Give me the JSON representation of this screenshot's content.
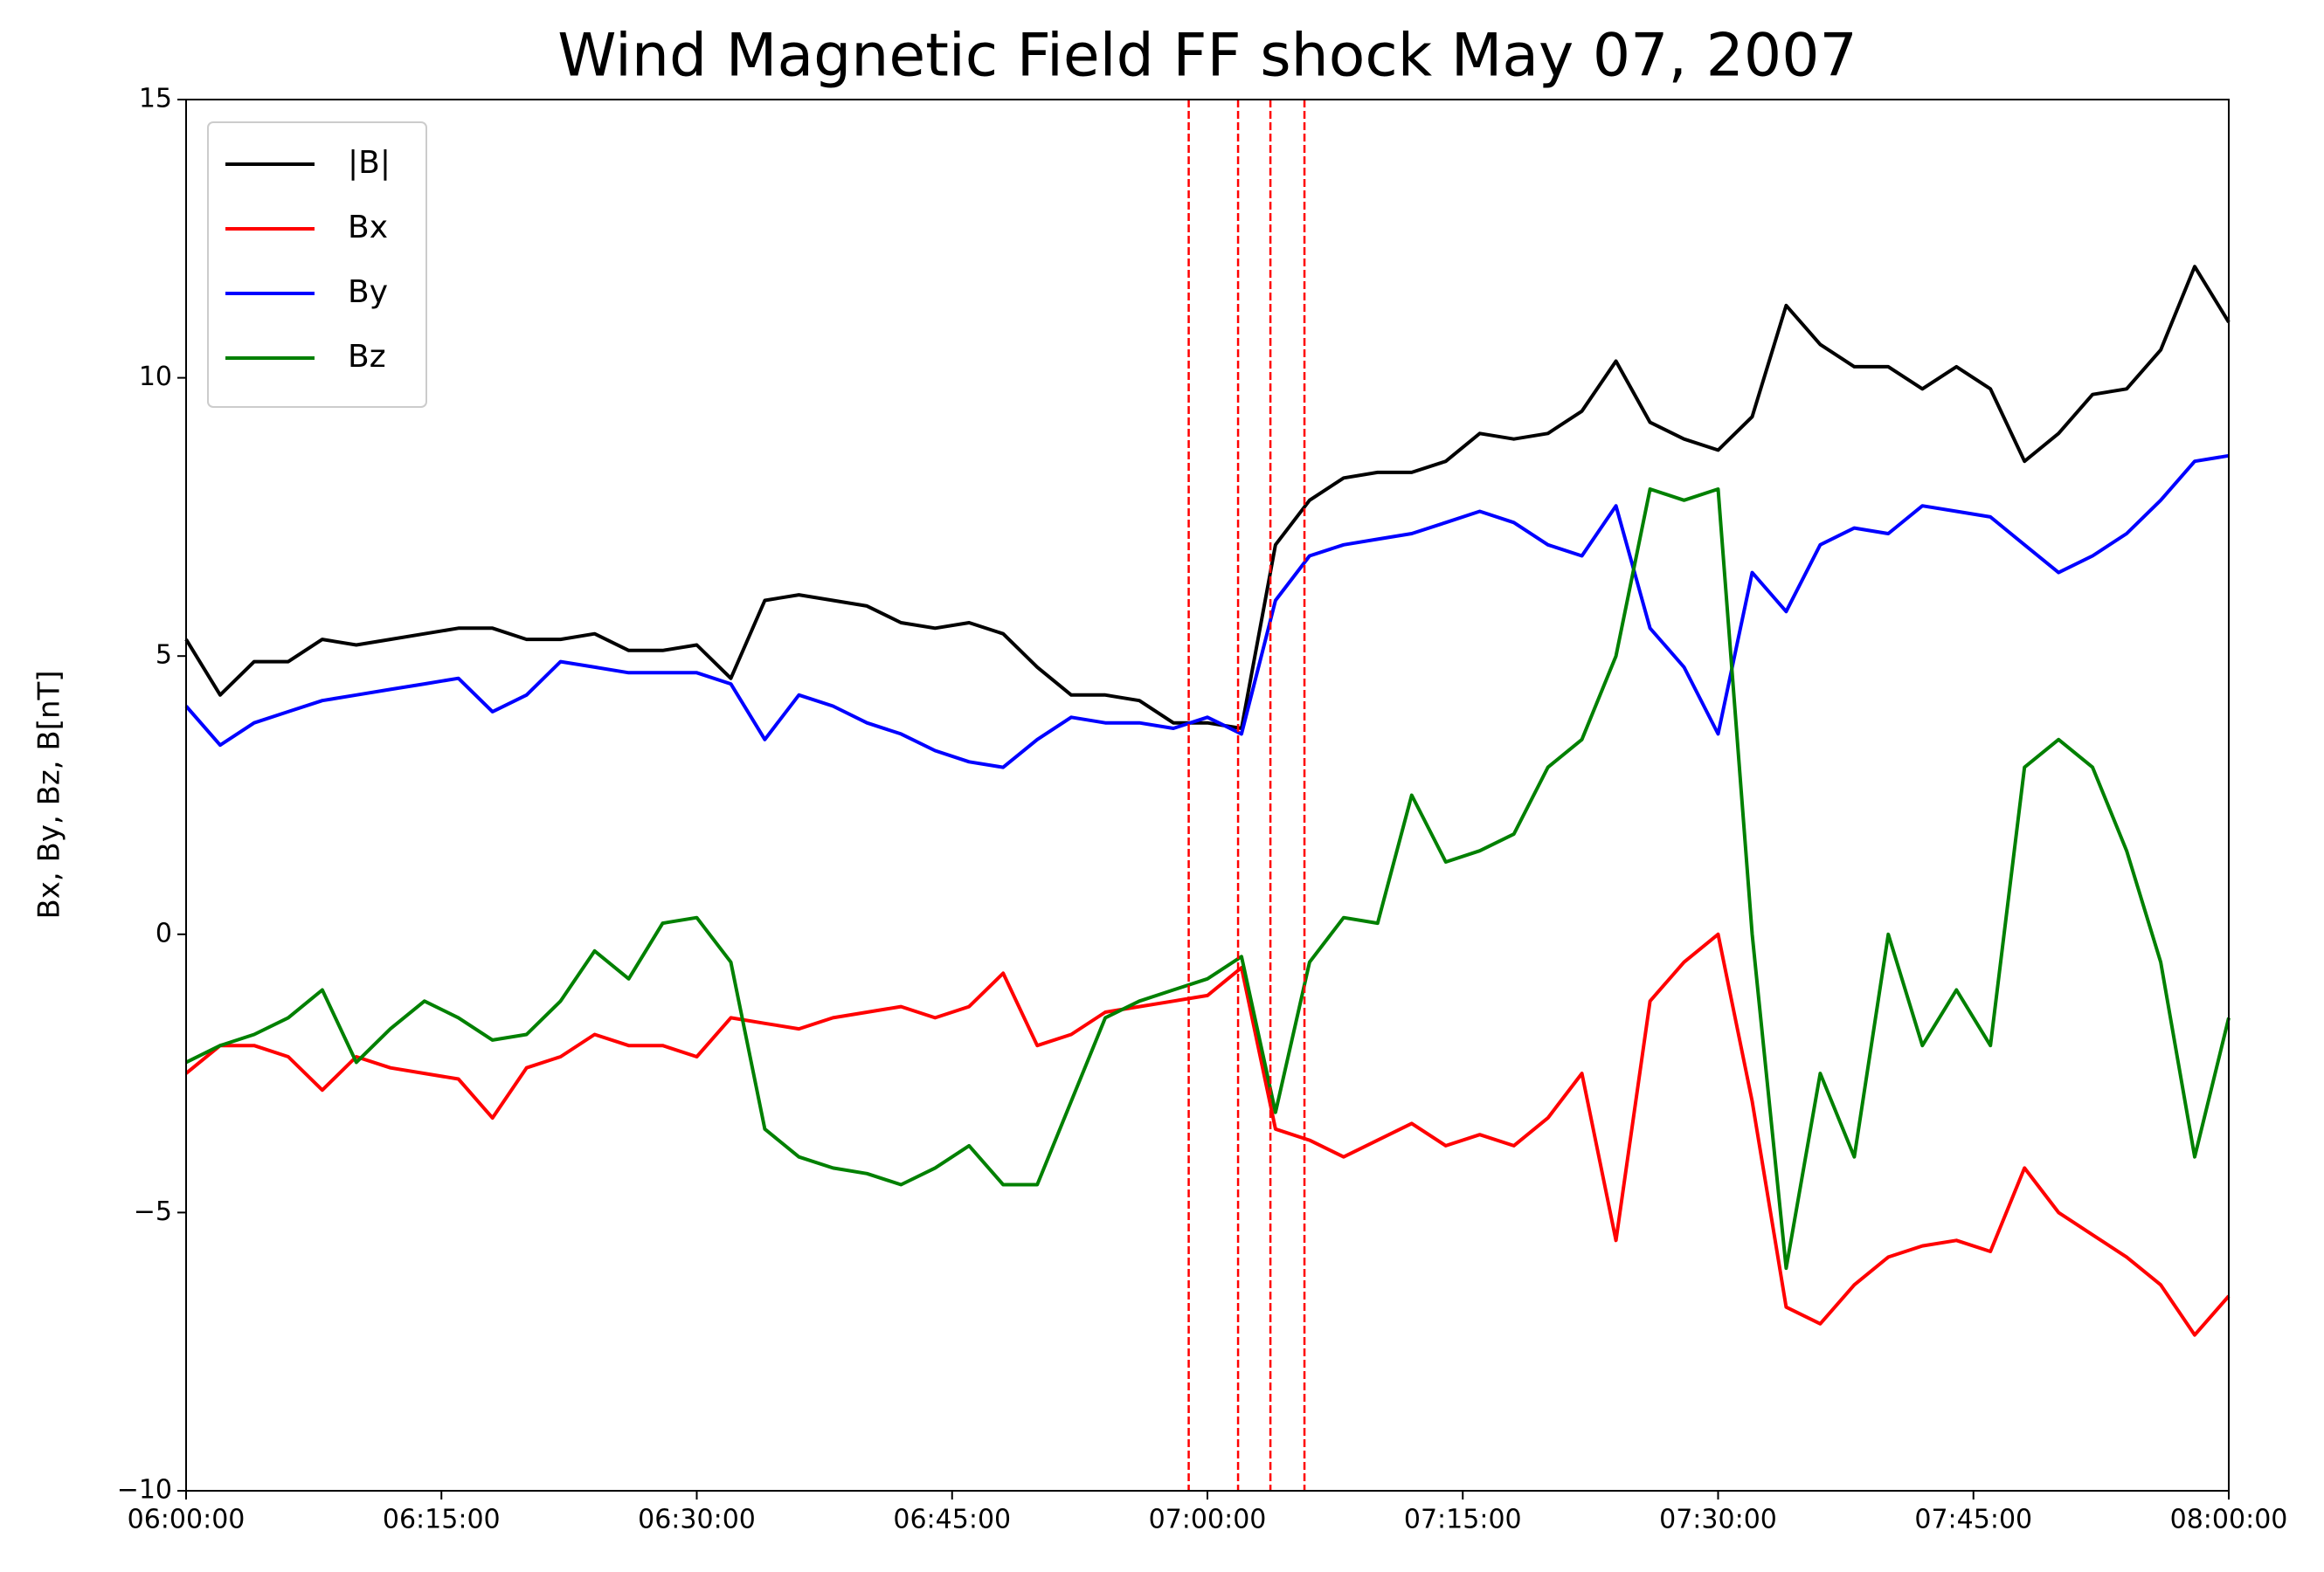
{
  "chart_data": {
    "type": "line",
    "title": "Wind Magnetic Field FF shock May 07, 2007",
    "ylabel": "Bx, By, Bz, B[nT]",
    "x": [
      "06:00:00",
      "06:02:00",
      "06:04:00",
      "06:06:00",
      "06:08:00",
      "06:10:00",
      "06:12:00",
      "06:14:00",
      "06:16:00",
      "06:18:00",
      "06:20:00",
      "06:22:00",
      "06:24:00",
      "06:26:00",
      "06:28:00",
      "06:30:00",
      "06:32:00",
      "06:34:00",
      "06:36:00",
      "06:38:00",
      "06:40:00",
      "06:42:00",
      "06:44:00",
      "06:46:00",
      "06:48:00",
      "06:50:00",
      "06:52:00",
      "06:54:00",
      "06:56:00",
      "06:58:00",
      "07:00:00",
      "07:02:00",
      "07:04:00",
      "07:06:00",
      "07:08:00",
      "07:10:00",
      "07:12:00",
      "07:14:00",
      "07:16:00",
      "07:18:00",
      "07:20:00",
      "07:22:00",
      "07:24:00",
      "07:26:00",
      "07:28:00",
      "07:30:00",
      "07:32:00",
      "07:34:00",
      "07:36:00",
      "07:38:00",
      "07:40:00",
      "07:42:00",
      "07:44:00",
      "07:46:00",
      "07:48:00",
      "07:50:00",
      "07:52:00",
      "07:54:00",
      "07:56:00",
      "07:58:00",
      "08:00:00"
    ],
    "series": [
      {
        "name": "|B|",
        "color": "#000000",
        "values": [
          5.3,
          4.3,
          4.9,
          4.9,
          5.3,
          5.2,
          5.3,
          5.4,
          5.5,
          5.5,
          5.3,
          5.3,
          5.4,
          5.1,
          5.1,
          5.2,
          4.6,
          6.0,
          6.1,
          6.0,
          5.9,
          5.6,
          5.5,
          5.6,
          5.4,
          4.8,
          4.3,
          4.3,
          4.2,
          3.8,
          3.8,
          3.7,
          7.0,
          7.8,
          8.2,
          8.3,
          8.3,
          8.5,
          9.0,
          8.9,
          9.0,
          9.4,
          10.3,
          9.2,
          8.9,
          8.7,
          9.3,
          11.3,
          10.6,
          10.2,
          10.2,
          9.8,
          10.2,
          9.8,
          8.5,
          9.0,
          9.7,
          9.8,
          10.5,
          12.0,
          11.0
        ]
      },
      {
        "name": "Bx",
        "color": "#ff0000",
        "values": [
          -2.5,
          -2.0,
          -2.0,
          -2.2,
          -2.8,
          -2.2,
          -2.4,
          -2.5,
          -2.6,
          -3.3,
          -2.4,
          -2.2,
          -1.8,
          -2.0,
          -2.0,
          -2.2,
          -1.5,
          -1.6,
          -1.7,
          -1.5,
          -1.4,
          -1.3,
          -1.5,
          -1.3,
          -0.7,
          -2.0,
          -1.8,
          -1.4,
          -1.3,
          -1.2,
          -1.1,
          -0.6,
          -3.5,
          -3.7,
          -4.0,
          -3.7,
          -3.4,
          -3.8,
          -3.6,
          -3.8,
          -3.3,
          -2.5,
          -5.5,
          -1.2,
          -0.5,
          0.0,
          -3.0,
          -6.7,
          -7.0,
          -6.3,
          -5.8,
          -5.6,
          -5.5,
          -5.7,
          -4.2,
          -5.0,
          -5.4,
          -5.8,
          -6.3,
          -7.2,
          -6.5
        ]
      },
      {
        "name": "By",
        "color": "#0000ff",
        "values": [
          4.1,
          3.4,
          3.8,
          4.0,
          4.2,
          4.3,
          4.4,
          4.5,
          4.6,
          4.0,
          4.3,
          4.9,
          4.8,
          4.7,
          4.7,
          4.7,
          4.5,
          3.5,
          4.3,
          4.1,
          3.8,
          3.6,
          3.3,
          3.1,
          3.0,
          3.5,
          3.9,
          3.8,
          3.8,
          3.7,
          3.9,
          3.6,
          6.0,
          6.8,
          7.0,
          7.1,
          7.2,
          7.4,
          7.6,
          7.4,
          7.0,
          6.8,
          7.7,
          5.5,
          4.8,
          3.6,
          6.5,
          5.8,
          7.0,
          7.3,
          7.2,
          7.7,
          7.6,
          7.5,
          7.0,
          6.5,
          6.8,
          7.2,
          7.8,
          8.5,
          8.6
        ]
      },
      {
        "name": "Bz",
        "color": "#008000",
        "values": [
          -2.3,
          -2.0,
          -1.8,
          -1.5,
          -1.0,
          -2.3,
          -1.7,
          -1.2,
          -1.5,
          -1.9,
          -1.8,
          -1.2,
          -0.3,
          -0.8,
          0.2,
          0.3,
          -0.5,
          -3.5,
          -4.0,
          -4.2,
          -4.3,
          -4.5,
          -4.2,
          -3.8,
          -4.5,
          -4.5,
          -3.0,
          -1.5,
          -1.2,
          -1.0,
          -0.8,
          -0.4,
          -3.2,
          -0.5,
          0.3,
          0.2,
          2.5,
          1.3,
          1.5,
          1.8,
          3.0,
          3.5,
          5.0,
          8.0,
          7.8,
          8.0,
          0.0,
          -6.0,
          -2.5,
          -4.0,
          0.0,
          -2.0,
          -1.0,
          -2.0,
          3.0,
          3.5,
          3.0,
          1.5,
          -0.5,
          -4.0,
          -1.5
        ]
      }
    ],
    "vlines": [
      "06:58:54",
      "07:01:48",
      "07:03:42",
      "07:05:42"
    ],
    "vline_color": "#ff0000",
    "xlim": [
      "06:00:00",
      "08:00:00"
    ],
    "xticks": [
      "06:00:00",
      "06:15:00",
      "06:30:00",
      "06:45:00",
      "07:00:00",
      "07:15:00",
      "07:30:00",
      "07:45:00",
      "08:00:00"
    ],
    "ylim": [
      -10,
      15
    ],
    "yticks": [
      {
        "value": -10,
        "label": "−10"
      },
      {
        "value": -5,
        "label": "−5"
      },
      0,
      5,
      10,
      15
    ],
    "legend": "upper left"
  }
}
